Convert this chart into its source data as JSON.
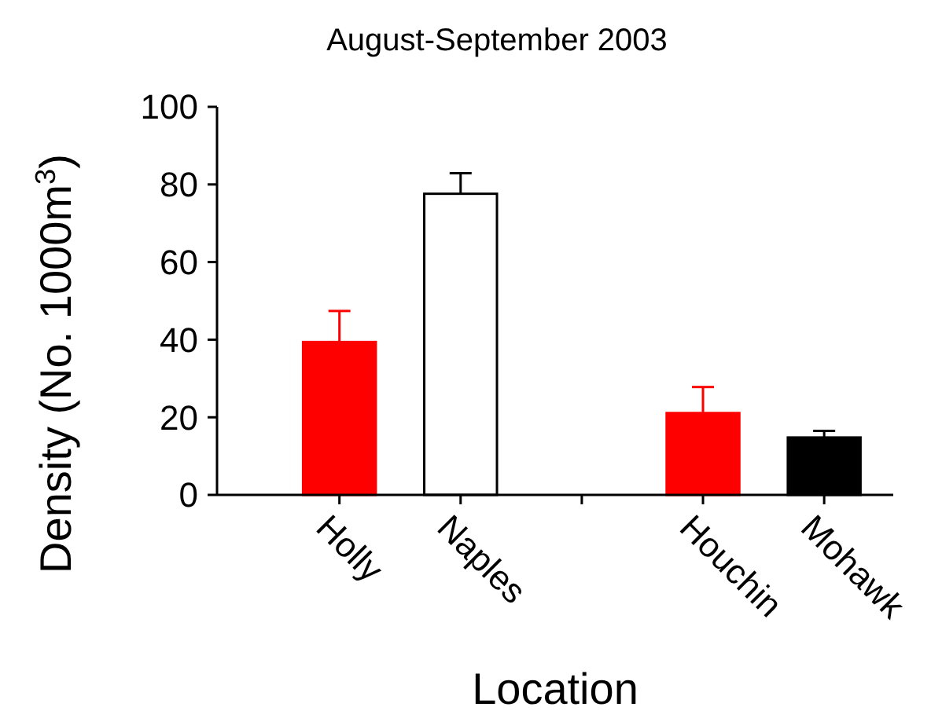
{
  "chart_data": {
    "type": "bar",
    "title": "August-September 2003",
    "xlabel": "Location",
    "ylabel": "Density (No. 1000m$^{3}$)",
    "categories": [
      "Holly",
      "Naples",
      null,
      "Houchin",
      "Mohawk"
    ],
    "values": [
      39.4,
      77.6,
      null,
      21.1,
      14.8
    ],
    "colors": [
      "#ff0000",
      "#ffffff",
      null,
      "#ff0000",
      "#000000"
    ],
    "errors": [
      [
        39.4,
        47.4
      ],
      [
        77.6,
        82.9
      ],
      null,
      [
        21.1,
        27.8
      ],
      [
        14.8,
        16.5
      ]
    ],
    "ylim": [
      0,
      100
    ],
    "yticks": [
      0,
      20,
      40,
      60,
      80,
      100
    ]
  }
}
